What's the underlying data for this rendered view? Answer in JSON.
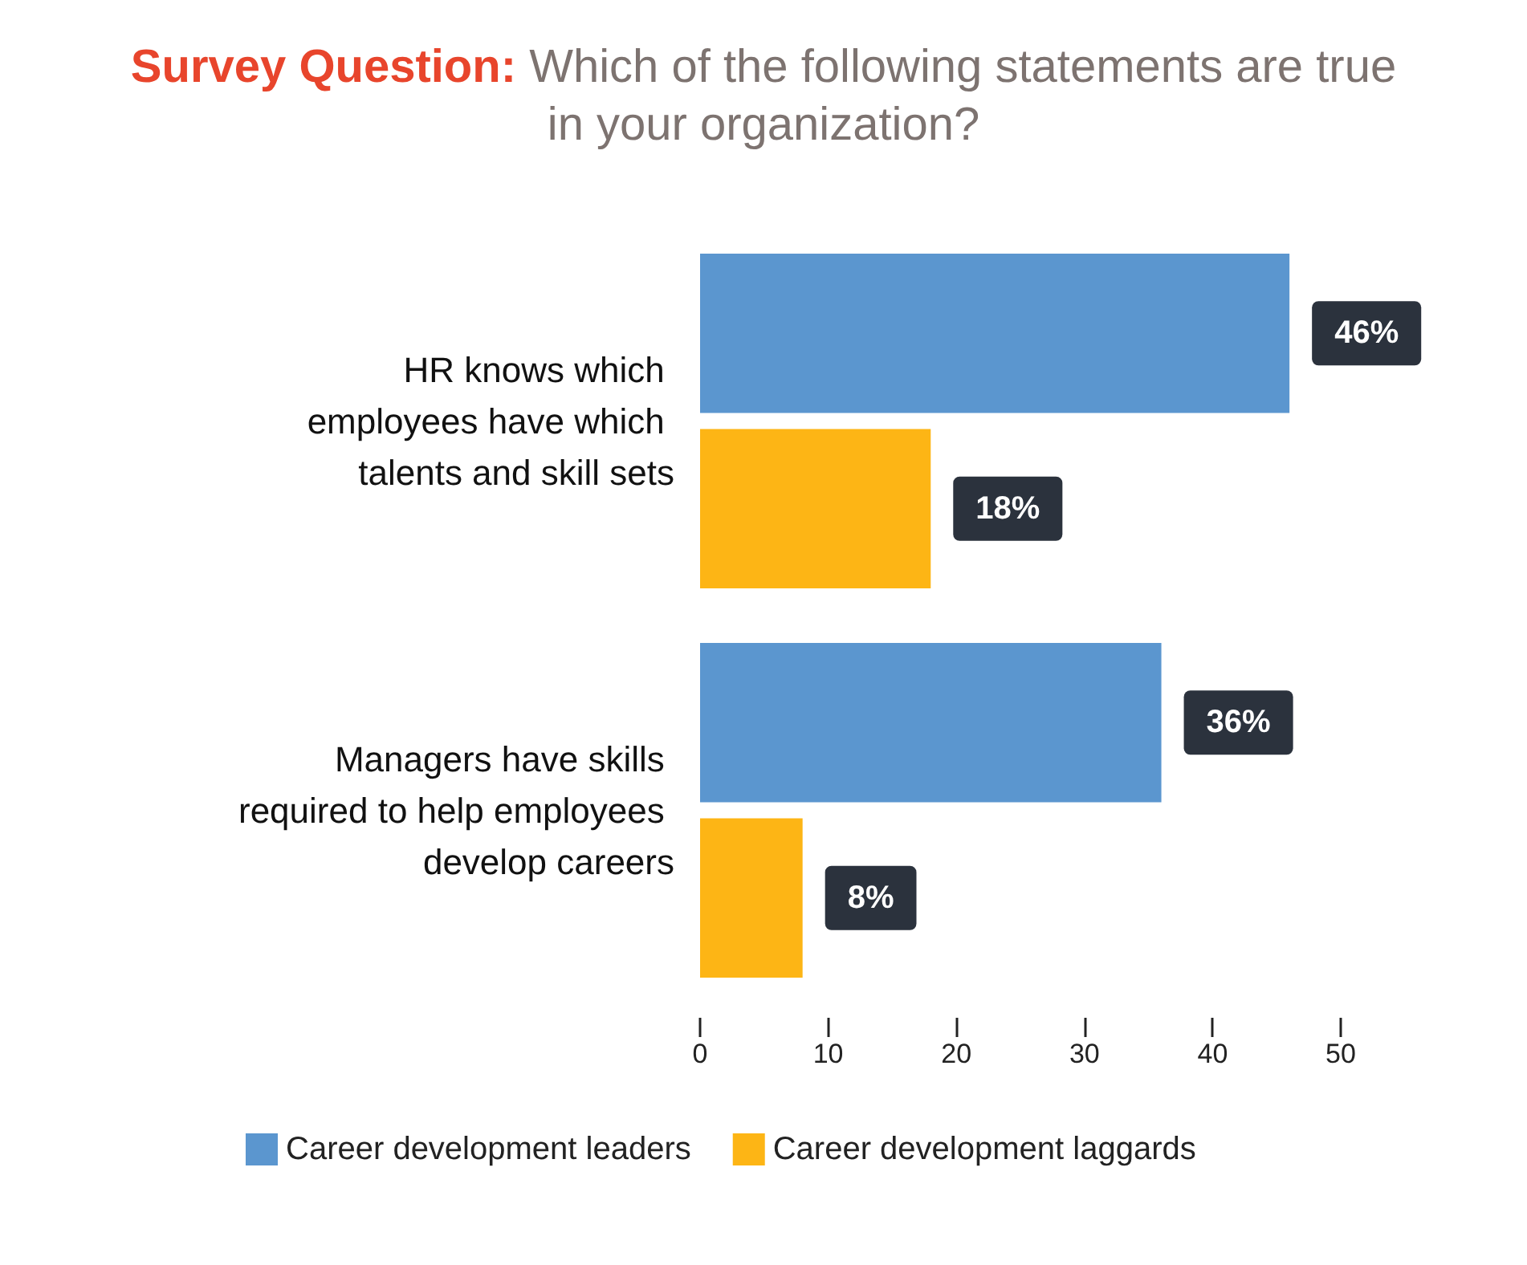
{
  "chart_data": {
    "type": "bar",
    "orientation": "horizontal",
    "title": "Survey Question:",
    "subtitle": "Which of the following statements are true in your organization?",
    "categories": [
      "HR knows which employees have which talents and skill sets",
      "Managers have skills required to help employees develop careers"
    ],
    "series": [
      {
        "name": "Career development leaders",
        "color": "#5b96cf",
        "values": [
          46,
          36
        ],
        "value_labels": [
          "46%",
          "36%"
        ]
      },
      {
        "name": "Career development laggards",
        "color": "#fdb515",
        "values": [
          18,
          8
        ],
        "value_labels": [
          "18%",
          "8%"
        ]
      }
    ],
    "xlim": [
      0,
      50
    ],
    "xticks": [
      0,
      10,
      20,
      30,
      40,
      50
    ],
    "grid": false,
    "legend": "bottom"
  }
}
